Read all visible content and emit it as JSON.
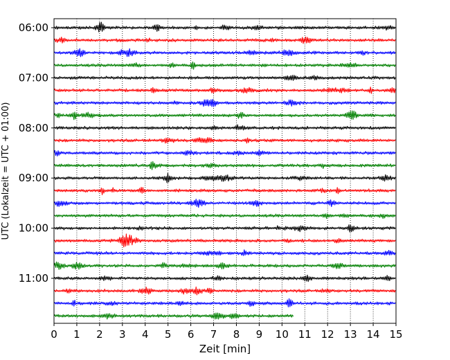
{
  "chart_data": {
    "type": "line",
    "title": "",
    "xlabel": "Zeit  [min]",
    "ylabel": "UTC (Lokalzeit = UTC + 01:00)",
    "xlim": [
      0,
      15
    ],
    "x_ticks": [
      0,
      1,
      2,
      3,
      4,
      5,
      6,
      7,
      8,
      9,
      10,
      11,
      12,
      13,
      14,
      15
    ],
    "x_tick_labels": [
      "0",
      "1",
      "2",
      "3",
      "4",
      "5",
      "6",
      "7",
      "8",
      "9",
      "10",
      "11",
      "12",
      "13",
      "14",
      "15"
    ],
    "y_tick_labels": [
      "06:00",
      "07:00",
      "08:00",
      "09:00",
      "10:00",
      "11:00"
    ],
    "grid": "vertical dotted",
    "color_cycle": [
      "#000000",
      "#ff0000",
      "#0000ff",
      "#008000"
    ],
    "series": [
      {
        "start": "06:00",
        "duration_min": 15,
        "color": "#000000"
      },
      {
        "start": "06:15",
        "duration_min": 15,
        "color": "#ff0000"
      },
      {
        "start": "06:30",
        "duration_min": 15,
        "color": "#0000ff"
      },
      {
        "start": "06:45",
        "duration_min": 15,
        "color": "#008000"
      },
      {
        "start": "07:00",
        "duration_min": 15,
        "color": "#000000"
      },
      {
        "start": "07:15",
        "duration_min": 15,
        "color": "#ff0000"
      },
      {
        "start": "07:30",
        "duration_min": 15,
        "color": "#0000ff"
      },
      {
        "start": "07:45",
        "duration_min": 15,
        "color": "#008000"
      },
      {
        "start": "08:00",
        "duration_min": 15,
        "color": "#000000"
      },
      {
        "start": "08:15",
        "duration_min": 15,
        "color": "#ff0000"
      },
      {
        "start": "08:30",
        "duration_min": 15,
        "color": "#0000ff"
      },
      {
        "start": "08:45",
        "duration_min": 15,
        "color": "#008000"
      },
      {
        "start": "09:00",
        "duration_min": 15,
        "color": "#000000"
      },
      {
        "start": "09:15",
        "duration_min": 15,
        "color": "#ff0000"
      },
      {
        "start": "09:30",
        "duration_min": 15,
        "color": "#0000ff"
      },
      {
        "start": "09:45",
        "duration_min": 15,
        "color": "#008000"
      },
      {
        "start": "10:00",
        "duration_min": 15,
        "color": "#000000"
      },
      {
        "start": "10:15",
        "duration_min": 15,
        "color": "#ff0000"
      },
      {
        "start": "10:30",
        "duration_min": 15,
        "color": "#0000ff"
      },
      {
        "start": "10:45",
        "duration_min": 15,
        "color": "#008000"
      },
      {
        "start": "11:00",
        "duration_min": 15,
        "color": "#000000"
      },
      {
        "start": "11:15",
        "duration_min": 15,
        "color": "#ff0000"
      },
      {
        "start": "11:30",
        "duration_min": 15,
        "color": "#0000ff"
      },
      {
        "start": "11:45",
        "duration_min": 10.5,
        "color": "#008000"
      }
    ]
  }
}
